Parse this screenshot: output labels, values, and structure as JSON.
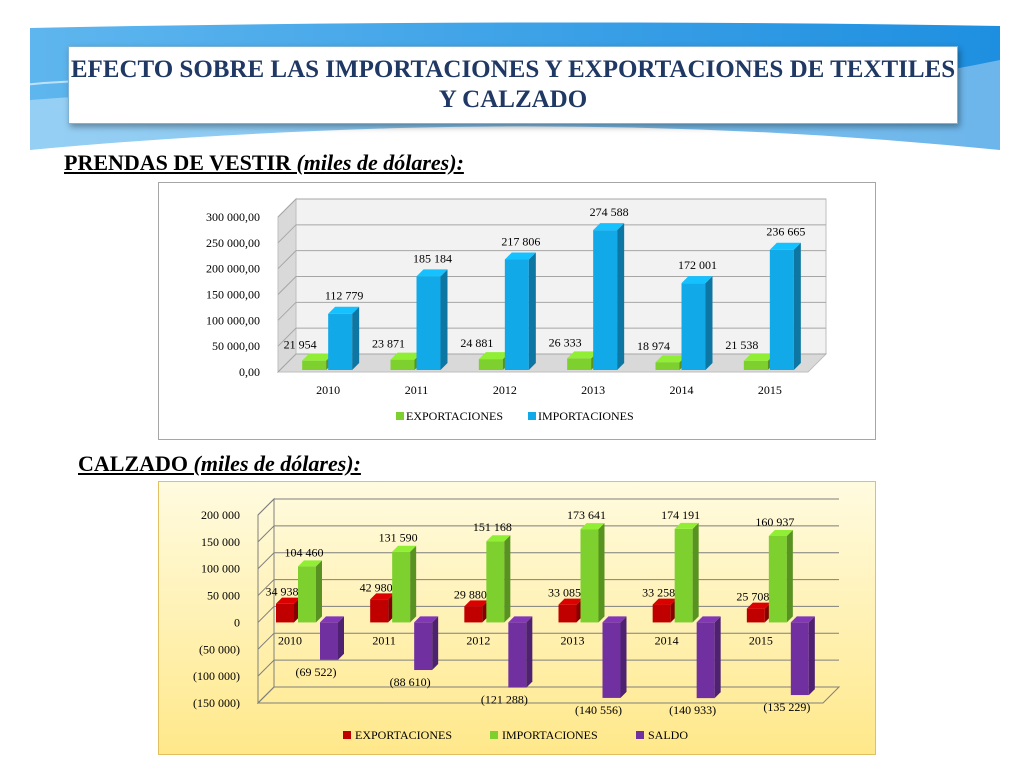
{
  "title": "EFECTO SOBRE LAS IMPORTACIONES Y EXPORTACIONES DE TEXTILES Y CALZADO",
  "section1": {
    "label": "PRENDAS DE VESTIR",
    "unit": "(miles de dólares):"
  },
  "section2": {
    "label": "CALZADO",
    "unit": "(miles de dólares):"
  },
  "colors": {
    "title": "#1f3864",
    "export_green": "#7dd02e",
    "import_blue": "#12a9e8",
    "export_red": "#c00000",
    "import_green": "#7dd02e",
    "saldo_purple": "#7030a0"
  },
  "chart_data": [
    {
      "type": "bar",
      "title": "PRENDAS DE VESTIR (miles de dólares):",
      "categories": [
        "2010",
        "2011",
        "2012",
        "2013",
        "2014",
        "2015"
      ],
      "series": [
        {
          "name": "EXPORTACIONES",
          "values": [
            21954,
            23871,
            24881,
            26333,
            18974,
            21538
          ],
          "labels": [
            "21 954",
            "23 871",
            "24 881",
            "26 333",
            "18 974",
            "21 538"
          ]
        },
        {
          "name": "IMPORTACIONES",
          "values": [
            112779,
            185184,
            217806,
            274588,
            172001,
            236665
          ],
          "labels": [
            "112 779",
            "185 184",
            "217 806",
            "274 588",
            "172 001",
            "236 665"
          ]
        }
      ],
      "yticks": [
        "0,00",
        "50 000,00",
        "100 000,00",
        "150 000,00",
        "200 000,00",
        "250 000,00",
        "300 000,00"
      ],
      "ylim": [
        0,
        300000
      ],
      "legend": "bottom"
    },
    {
      "type": "bar",
      "title": "CALZADO (miles de dólares):",
      "categories": [
        "2010",
        "2011",
        "2012",
        "2013",
        "2014",
        "2015"
      ],
      "series": [
        {
          "name": "EXPORTACIONES",
          "values": [
            34938,
            42980,
            29880,
            33085,
            33258,
            25708
          ],
          "labels": [
            "34 938",
            "42 980",
            "29 880",
            "33 085",
            "33 258",
            "25 708"
          ]
        },
        {
          "name": "IMPORTACIONES",
          "values": [
            104460,
            131590,
            151168,
            173641,
            174191,
            160937
          ],
          "labels": [
            "104 460",
            "131 590",
            "151 168",
            "173 641",
            "174 191",
            "160 937"
          ]
        },
        {
          "name": "SALDO",
          "values": [
            -69522,
            -88610,
            -121288,
            -140556,
            -140933,
            -135229
          ],
          "labels": [
            "(69 522)",
            "(88 610)",
            "(121 288)",
            "(140 556)",
            "(140 933)",
            "(135 229)"
          ]
        }
      ],
      "yticks": [
        "(150 000)",
        "(100 000)",
        "(50 000)",
        "0",
        "50 000",
        "100 000",
        "150 000",
        "200 000"
      ],
      "ylim": [
        -150000,
        200000
      ],
      "legend": "bottom"
    }
  ]
}
